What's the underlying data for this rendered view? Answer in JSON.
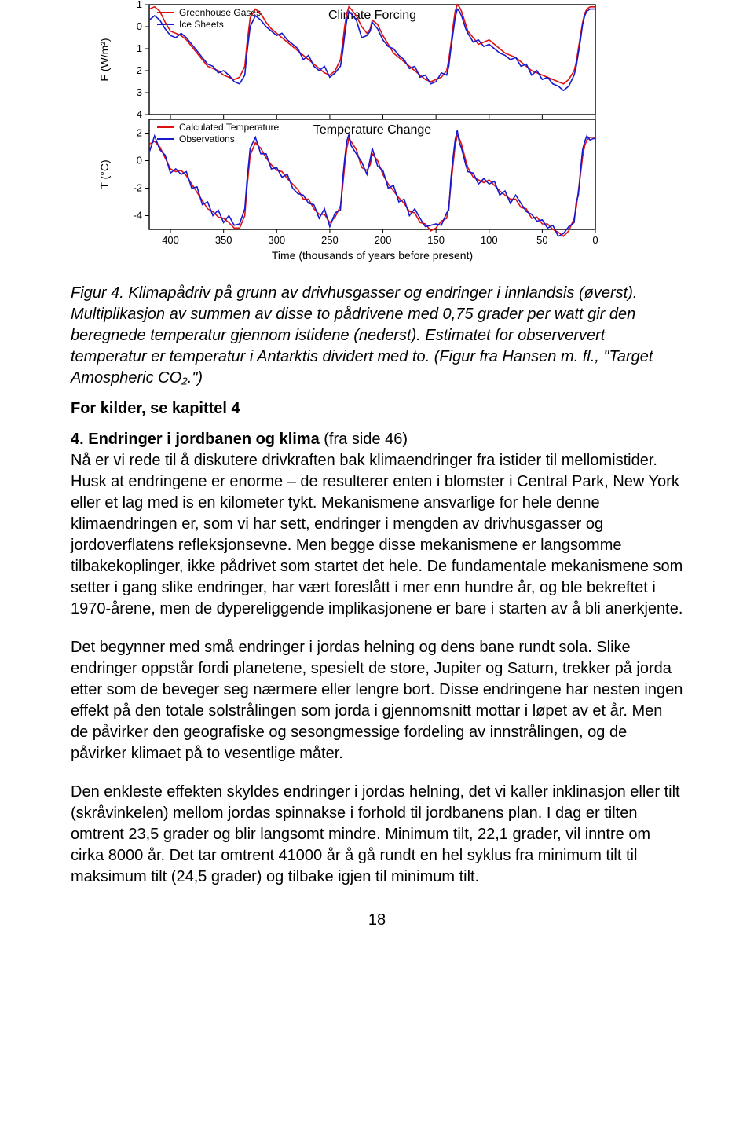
{
  "charts": {
    "xlabel": "Time (thousands of years before present)",
    "xlabel_fontsize": 14,
    "xlim": [
      420,
      0
    ],
    "xticks": [
      400,
      350,
      300,
      250,
      200,
      150,
      100,
      50,
      0
    ],
    "background_color": "#ffffff",
    "axis_color": "#000000",
    "grid": false,
    "panels": [
      {
        "title": "Climate Forcing",
        "title_fontsize": 16,
        "ylabel": "F (W/m²)",
        "ylabel_fontsize": 14,
        "ylim": [
          -4,
          1
        ],
        "yticks": [
          1,
          0,
          -1,
          -2,
          -3,
          -4
        ],
        "legend": [
          {
            "label": "Greenhouse Gases",
            "color": "#e01010"
          },
          {
            "label": "Ice Sheets",
            "color": "#1818d0"
          }
        ],
        "legend_pos": "upper-left",
        "line_width": 1.6,
        "series": [
          {
            "name": "Greenhouse Gases",
            "color": "#e01010",
            "x": [
              420,
              415,
              410,
              405,
              400,
              395,
              390,
              385,
              380,
              375,
              370,
              365,
              360,
              355,
              350,
              345,
              340,
              335,
              330,
              328,
              325,
              320,
              315,
              310,
              305,
              300,
              295,
              290,
              285,
              280,
              275,
              270,
              265,
              260,
              255,
              250,
              245,
              240,
              238,
              236,
              234,
              232,
              230,
              225,
              220,
              215,
              212,
              210,
              205,
              200,
              195,
              190,
              185,
              180,
              175,
              170,
              165,
              160,
              155,
              150,
              145,
              140,
              138,
              136,
              134,
              132,
              130,
              128,
              126,
              124,
              122,
              120,
              115,
              110,
              105,
              100,
              95,
              90,
              85,
              80,
              75,
              70,
              65,
              60,
              55,
              50,
              45,
              40,
              35,
              30,
              25,
              20,
              18,
              16,
              14,
              12,
              10,
              8,
              5,
              2,
              0
            ],
            "y": [
              0.8,
              0.9,
              0.7,
              0.2,
              -0.2,
              -0.3,
              -0.4,
              -0.6,
              -0.9,
              -1.2,
              -1.5,
              -1.8,
              -1.9,
              -2.0,
              -2.2,
              -2.3,
              -2.4,
              -2.3,
              -1.8,
              -0.8,
              0.4,
              0.8,
              0.6,
              0.2,
              -0.1,
              -0.3,
              -0.5,
              -0.7,
              -0.9,
              -1.1,
              -1.3,
              -1.5,
              -1.7,
              -1.9,
              -2.1,
              -2.2,
              -2.0,
              -1.5,
              -0.8,
              0.0,
              0.6,
              0.9,
              0.8,
              0.5,
              0.0,
              -0.3,
              -0.1,
              0.3,
              0.1,
              -0.4,
              -0.8,
              -1.2,
              -1.4,
              -1.6,
              -1.8,
              -2.0,
              -2.2,
              -2.4,
              -2.5,
              -2.4,
              -2.3,
              -2.0,
              -1.5,
              -0.8,
              0.0,
              0.7,
              1.0,
              0.9,
              0.7,
              0.4,
              0.1,
              -0.2,
              -0.5,
              -0.8,
              -0.7,
              -0.6,
              -0.8,
              -1.0,
              -1.2,
              -1.3,
              -1.4,
              -1.6,
              -1.8,
              -2.0,
              -2.1,
              -2.2,
              -2.3,
              -2.4,
              -2.5,
              -2.6,
              -2.4,
              -2.0,
              -1.6,
              -1.0,
              -0.4,
              0.2,
              0.6,
              0.8,
              0.9,
              0.9,
              0.9
            ]
          },
          {
            "name": "Ice Sheets",
            "color": "#1818d0",
            "x": [
              420,
              415,
              410,
              405,
              400,
              395,
              390,
              385,
              380,
              375,
              370,
              365,
              360,
              355,
              350,
              345,
              340,
              335,
              330,
              328,
              325,
              320,
              315,
              310,
              305,
              300,
              295,
              290,
              285,
              280,
              275,
              270,
              265,
              260,
              255,
              250,
              245,
              240,
              238,
              236,
              234,
              232,
              230,
              225,
              220,
              215,
              212,
              210,
              205,
              200,
              195,
              190,
              185,
              180,
              175,
              170,
              165,
              160,
              155,
              150,
              145,
              140,
              138,
              136,
              134,
              132,
              130,
              128,
              126,
              124,
              122,
              120,
              115,
              110,
              105,
              100,
              95,
              90,
              85,
              80,
              75,
              70,
              65,
              60,
              55,
              50,
              45,
              40,
              35,
              30,
              25,
              20,
              18,
              16,
              14,
              12,
              10,
              8,
              5,
              2,
              0
            ],
            "y": [
              0.3,
              0.5,
              0.3,
              -0.1,
              -0.4,
              -0.5,
              -0.3,
              -0.5,
              -0.8,
              -1.1,
              -1.4,
              -1.7,
              -1.8,
              -2.1,
              -2.0,
              -2.2,
              -2.5,
              -2.6,
              -2.2,
              -1.2,
              0.0,
              0.5,
              0.3,
              0.0,
              -0.2,
              -0.4,
              -0.3,
              -0.6,
              -0.8,
              -1.0,
              -1.5,
              -1.3,
              -1.8,
              -2.0,
              -1.8,
              -2.3,
              -2.1,
              -1.8,
              -1.2,
              -0.4,
              0.3,
              0.7,
              0.6,
              0.3,
              -0.5,
              -0.4,
              -0.2,
              0.2,
              -0.1,
              -0.6,
              -0.9,
              -1.0,
              -1.3,
              -1.5,
              -1.9,
              -1.8,
              -2.3,
              -2.2,
              -2.6,
              -2.5,
              -2.1,
              -2.2,
              -1.8,
              -1.0,
              -0.3,
              0.4,
              0.8,
              0.7,
              0.5,
              0.2,
              -0.1,
              -0.3,
              -0.7,
              -0.6,
              -0.9,
              -0.8,
              -1.0,
              -1.2,
              -1.3,
              -1.5,
              -1.4,
              -1.8,
              -1.7,
              -2.2,
              -2.0,
              -2.4,
              -2.3,
              -2.6,
              -2.7,
              -2.9,
              -2.7,
              -2.2,
              -1.8,
              -1.2,
              -0.6,
              0.1,
              0.5,
              0.7,
              0.8,
              0.8,
              0.8
            ]
          }
        ]
      },
      {
        "title": "Temperature Change",
        "title_fontsize": 16,
        "ylabel": "T (°C)",
        "ylabel_fontsize": 14,
        "ylim": [
          -5,
          3
        ],
        "yticks": [
          2,
          0,
          -2,
          -4
        ],
        "legend": [
          {
            "label": "Calculated Temperature",
            "color": "#e01010"
          },
          {
            "label": "Observations",
            "color": "#1818d0"
          }
        ],
        "legend_pos": "upper-left",
        "line_width": 1.6,
        "series": [
          {
            "name": "Calculated Temperature",
            "color": "#e01010",
            "x": [
              420,
              415,
              410,
              405,
              400,
              395,
              390,
              385,
              380,
              375,
              370,
              365,
              360,
              355,
              350,
              345,
              340,
              335,
              330,
              328,
              325,
              320,
              315,
              310,
              305,
              300,
              295,
              290,
              285,
              280,
              275,
              270,
              265,
              260,
              255,
              250,
              245,
              240,
              238,
              236,
              234,
              232,
              230,
              225,
              220,
              215,
              212,
              210,
              205,
              200,
              195,
              190,
              185,
              180,
              175,
              170,
              165,
              160,
              155,
              150,
              145,
              140,
              138,
              136,
              134,
              132,
              130,
              128,
              126,
              124,
              122,
              120,
              115,
              110,
              105,
              100,
              95,
              90,
              85,
              80,
              75,
              70,
              65,
              60,
              55,
              50,
              45,
              40,
              35,
              30,
              25,
              20,
              18,
              16,
              14,
              12,
              10,
              8,
              5,
              2,
              0
            ],
            "y": [
              1.2,
              1.4,
              1.0,
              0.2,
              -0.6,
              -0.8,
              -0.7,
              -1.1,
              -1.7,
              -2.3,
              -2.9,
              -3.5,
              -3.7,
              -4.1,
              -4.2,
              -4.5,
              -4.9,
              -4.9,
              -4.0,
              -2.0,
              0.4,
              1.3,
              0.9,
              0.2,
              -0.3,
              -0.7,
              -0.8,
              -1.3,
              -1.7,
              -2.1,
              -2.8,
              -2.8,
              -3.5,
              -3.9,
              -3.9,
              -4.5,
              -4.1,
              -3.3,
              -2.0,
              -0.4,
              0.9,
              1.6,
              1.4,
              0.8,
              -0.5,
              -0.7,
              -0.3,
              0.5,
              0.0,
              -1.0,
              -1.7,
              -2.2,
              -2.7,
              -3.1,
              -3.7,
              -3.8,
              -4.5,
              -4.6,
              -5.1,
              -4.9,
              -4.4,
              -4.2,
              -3.3,
              -1.8,
              -0.3,
              1.1,
              1.8,
              1.6,
              1.2,
              0.6,
              0.0,
              -0.5,
              -1.2,
              -1.4,
              -1.6,
              -1.4,
              -1.8,
              -2.2,
              -2.5,
              -2.8,
              -2.8,
              -3.4,
              -3.5,
              -4.2,
              -4.1,
              -4.6,
              -4.6,
              -5.0,
              -5.2,
              -5.5,
              -5.1,
              -4.2,
              -3.4,
              -2.2,
              -1.0,
              0.3,
              1.1,
              1.5,
              1.7,
              1.7,
              1.7
            ]
          },
          {
            "name": "Observations",
            "color": "#1818d0",
            "x": [
              420,
              415,
              410,
              405,
              400,
              395,
              390,
              385,
              380,
              375,
              370,
              365,
              360,
              355,
              350,
              345,
              340,
              335,
              330,
              328,
              325,
              320,
              315,
              310,
              305,
              300,
              295,
              290,
              285,
              280,
              275,
              270,
              265,
              260,
              255,
              250,
              245,
              240,
              238,
              236,
              234,
              232,
              230,
              225,
              220,
              215,
              212,
              210,
              205,
              200,
              195,
              190,
              185,
              180,
              175,
              170,
              165,
              160,
              155,
              150,
              145,
              140,
              138,
              136,
              134,
              132,
              130,
              128,
              126,
              124,
              122,
              120,
              115,
              110,
              105,
              100,
              95,
              90,
              85,
              80,
              75,
              70,
              65,
              60,
              55,
              50,
              45,
              40,
              35,
              30,
              25,
              20,
              18,
              16,
              14,
              12,
              10,
              8,
              5,
              2,
              0
            ],
            "y": [
              0.6,
              1.8,
              0.8,
              0.4,
              -0.9,
              -0.6,
              -1.0,
              -0.8,
              -2.0,
              -1.9,
              -3.2,
              -3.0,
              -4.0,
              -3.6,
              -4.5,
              -4.0,
              -4.7,
              -4.6,
              -3.5,
              -1.5,
              0.9,
              1.7,
              0.5,
              0.5,
              -0.6,
              -0.5,
              -1.2,
              -1.0,
              -2.0,
              -2.4,
              -2.5,
              -3.1,
              -3.2,
              -4.2,
              -3.5,
              -4.8,
              -3.8,
              -3.6,
              -1.5,
              0.1,
              1.4,
              1.9,
              1.1,
              0.5,
              -0.1,
              -1.0,
              0.1,
              0.9,
              -0.4,
              -0.7,
              -2.0,
              -1.8,
              -3.0,
              -2.8,
              -4.0,
              -3.5,
              -4.2,
              -4.8,
              -4.7,
              -4.6,
              -4.7,
              -3.8,
              -3.6,
              -1.3,
              0.2,
              1.5,
              2.2,
              1.3,
              0.9,
              0.3,
              -0.3,
              -0.8,
              -0.9,
              -1.7,
              -1.3,
              -1.7,
              -1.5,
              -2.5,
              -2.2,
              -3.1,
              -2.5,
              -3.1,
              -3.7,
              -3.9,
              -4.4,
              -4.3,
              -4.9,
              -4.7,
              -5.5,
              -5.3,
              -4.8,
              -4.5,
              -3.0,
              -2.5,
              -0.7,
              0.8,
              1.4,
              1.8,
              1.5,
              1.6,
              1.6
            ]
          }
        ]
      }
    ]
  },
  "caption": "Figur 4. Klimapådriv på grunn av drivhusgasser og endringer i innlandsis (øverst). Multiplikasjon av summen av disse to pådrivene med 0,75 grader per watt gir den beregnede temperatur gjennom istidene (nederst). Estimatet for observervert temperatur er temperatur i Antarktis dividert med to. (Figur fra Hansen m. fl., \"Target Amospheric CO₂.\")",
  "kilder_line": "For kilder, se kapittel 4",
  "section": {
    "heading": "4. Endringer i jordbanen og klima",
    "heading_parenthetical": " (fra side 46)",
    "para1": "Nå er vi rede til å diskutere drivkraften bak klimaendringer fra istider til mellomistider. Husk at endringene er enorme – de resulterer enten i blomster i Central Park, New York eller et lag med is en kilometer tykt. Mekanismene ansvarlige for hele denne klimaendringen er, som vi har sett, endringer i mengden av drivhusgasser og jordoverflatens refleksjonsevne. Men begge disse mekanismene er langsomme tilbakekoplinger, ikke pådrivet som startet det hele. De fundamentale mekanismene som setter i gang slike endringer, har vært foreslått i mer enn hundre år, og ble bekreftet i 1970-årene, men de dypereliggende implikasjonene er bare i starten av å bli anerkjente.",
    "para2": "Det begynner med små endringer i jordas helning og dens bane rundt sola. Slike endringer oppstår fordi planetene, spesielt de store, Jupiter og Saturn, trekker på jorda etter som de beveger seg nærmere eller lengre bort. Disse endringene har nesten ingen effekt på den totale solstrålingen som jorda i gjennomsnitt mottar i løpet av et år. Men de påvirker den geografiske og sesongmessige fordeling av innstrålingen, og de påvirker klimaet på to vesentlige måter.",
    "para3": "Den enkleste effekten skyldes endringer i jordas helning, det vi kaller inklinasjon eller tilt (skråvinkelen) mellom jordas spinnakse i forhold til jordbanens plan. I dag er tilten omtrent 23,5 grader og blir langsomt mindre. Minimum tilt, 22,1 grader, vil inntre om cirka 8000 år. Det tar omtrent 41000 år å gå rundt en hel syklus fra minimum tilt til maksimum tilt (24,5 grader) og tilbake igjen til minimum tilt."
  },
  "page_number": "18"
}
